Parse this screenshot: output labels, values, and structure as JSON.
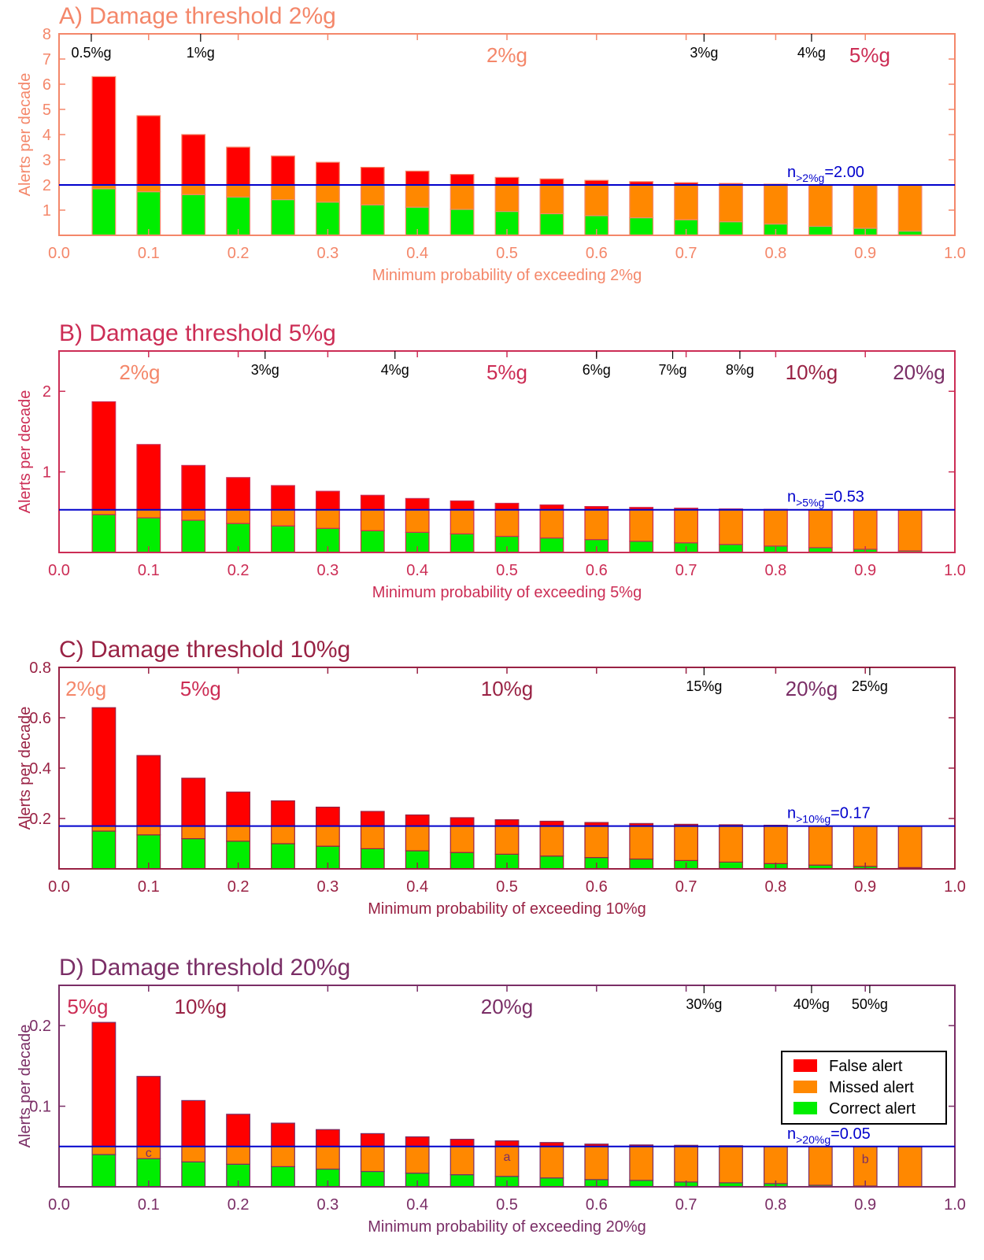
{
  "legend": {
    "items": [
      {
        "label": "False alert",
        "color": "#ff0000"
      },
      {
        "label": "Missed alert",
        "color": "#ff8800"
      },
      {
        "label": "Correct alert",
        "color": "#00ee00"
      }
    ],
    "placement": "right, inside panel D"
  },
  "colors": {
    "threshold_line": "#0000cc",
    "frame_black": "#000000"
  },
  "chart_data": [
    {
      "type": "bar",
      "stacked": true,
      "title": "A) Damage threshold 2%g",
      "color": "#f4876a",
      "xlabel": "Minimum probability of exceeding 2%g",
      "ylabel": "Alerts per decade",
      "xlim": [
        0.0,
        1.0
      ],
      "ylim": [
        0,
        8
      ],
      "xticks": [
        "0.0",
        "0.1",
        "0.2",
        "0.3",
        "0.4",
        "0.5",
        "0.6",
        "0.7",
        "0.8",
        "0.9",
        "1.0"
      ],
      "yticks": [
        {
          "v": 1,
          "label": "1"
        },
        {
          "v": 2,
          "label": "2"
        },
        {
          "v": 3,
          "label": "3"
        },
        {
          "v": 4,
          "label": "4"
        },
        {
          "v": 5,
          "label": "5"
        },
        {
          "v": 6,
          "label": "6"
        },
        {
          "v": 7,
          "label": "7"
        },
        {
          "v": 8,
          "label": "8"
        }
      ],
      "x": [
        0.05,
        0.1,
        0.15,
        0.2,
        0.25,
        0.3,
        0.35,
        0.4,
        0.45,
        0.5,
        0.55,
        0.6,
        0.65,
        0.7,
        0.75,
        0.8,
        0.85,
        0.9,
        0.95
      ],
      "n_value": 2.0,
      "n_sub": ">2%g",
      "n_val_text": "=2.00",
      "series": [
        {
          "name": "Correct alert",
          "values": [
            1.85,
            1.73,
            1.62,
            1.52,
            1.42,
            1.32,
            1.21,
            1.12,
            1.03,
            0.95,
            0.86,
            0.78,
            0.7,
            0.62,
            0.54,
            0.45,
            0.36,
            0.28,
            0.17
          ]
        },
        {
          "name": "Missed alert",
          "values": [
            0.15,
            0.27,
            0.38,
            0.48,
            0.58,
            0.68,
            0.79,
            0.88,
            0.97,
            1.05,
            1.14,
            1.22,
            1.3,
            1.38,
            1.46,
            1.55,
            1.64,
            1.72,
            1.83
          ]
        },
        {
          "name": "False alert",
          "values": [
            4.3,
            2.75,
            2.0,
            1.5,
            1.15,
            0.9,
            0.7,
            0.55,
            0.42,
            0.3,
            0.24,
            0.18,
            0.13,
            0.09,
            0.06,
            0.03,
            0.0,
            0.0,
            0.0
          ]
        }
      ],
      "top_labels": [
        {
          "text": "0.5%g",
          "x": 0.036,
          "color": "#000000",
          "large": false
        },
        {
          "text": "1%g",
          "x": 0.158,
          "color": "#000000",
          "large": false
        },
        {
          "text": "2%g",
          "x": 0.5,
          "color": "#f4876a",
          "large": true
        },
        {
          "text": "3%g",
          "x": 0.72,
          "color": "#000000",
          "large": false
        },
        {
          "text": "4%g",
          "x": 0.84,
          "color": "#000000",
          "large": false
        },
        {
          "text": "5%g",
          "x": 0.905,
          "color": "#cc2d55",
          "large": true
        }
      ],
      "inside_letters": []
    },
    {
      "type": "bar",
      "stacked": true,
      "title": "B) Damage threshold 5%g",
      "color": "#cc2d55",
      "xlabel": "Minimum probability of exceeding 5%g",
      "ylabel": "Alerts per decade",
      "xlim": [
        0.0,
        1.0
      ],
      "ylim": [
        0,
        2.5
      ],
      "xticks": [
        "0.0",
        "0.1",
        "0.2",
        "0.3",
        "0.4",
        "0.5",
        "0.6",
        "0.7",
        "0.8",
        "0.9",
        "1.0"
      ],
      "yticks": [
        {
          "v": 1,
          "label": "1"
        },
        {
          "v": 2,
          "label": "2"
        }
      ],
      "x": [
        0.05,
        0.1,
        0.15,
        0.2,
        0.25,
        0.3,
        0.35,
        0.4,
        0.45,
        0.5,
        0.55,
        0.6,
        0.65,
        0.7,
        0.75,
        0.8,
        0.85,
        0.9,
        0.95
      ],
      "n_value": 0.53,
      "n_sub": ">5%g",
      "n_val_text": "=0.53",
      "series": [
        {
          "name": "Correct alert",
          "values": [
            0.47,
            0.43,
            0.4,
            0.36,
            0.33,
            0.3,
            0.27,
            0.25,
            0.23,
            0.2,
            0.18,
            0.16,
            0.14,
            0.12,
            0.1,
            0.08,
            0.06,
            0.04,
            0.02
          ]
        },
        {
          "name": "Missed alert",
          "values": [
            0.06,
            0.1,
            0.13,
            0.17,
            0.2,
            0.23,
            0.26,
            0.28,
            0.3,
            0.33,
            0.35,
            0.37,
            0.39,
            0.41,
            0.43,
            0.45,
            0.47,
            0.49,
            0.51
          ]
        },
        {
          "name": "False alert",
          "values": [
            1.34,
            0.81,
            0.55,
            0.4,
            0.3,
            0.23,
            0.18,
            0.14,
            0.11,
            0.08,
            0.06,
            0.04,
            0.03,
            0.02,
            0.01,
            0.005,
            0.0,
            0.0,
            0.0
          ]
        }
      ],
      "top_labels": [
        {
          "text": "2%g",
          "x": 0.09,
          "color": "#f4876a",
          "large": true
        },
        {
          "text": "3%g",
          "x": 0.23,
          "color": "#000000",
          "large": false
        },
        {
          "text": "4%g",
          "x": 0.375,
          "color": "#000000",
          "large": false
        },
        {
          "text": "5%g",
          "x": 0.5,
          "color": "#cc2d55",
          "large": true
        },
        {
          "text": "6%g",
          "x": 0.6,
          "color": "#000000",
          "large": false
        },
        {
          "text": "7%g",
          "x": 0.685,
          "color": "#000000",
          "large": false
        },
        {
          "text": "8%g",
          "x": 0.76,
          "color": "#000000",
          "large": false
        },
        {
          "text": "10%g",
          "x": 0.84,
          "color": "#992244",
          "large": true
        },
        {
          "text": "20%g",
          "x": 0.96,
          "color": "#7a2e66",
          "large": true
        }
      ],
      "inside_letters": []
    },
    {
      "type": "bar",
      "stacked": true,
      "title": "C) Damage threshold 10%g",
      "color": "#992244",
      "xlabel": "Minimum probability of exceeding 10%g",
      "ylabel": "Alerts per decade",
      "xlim": [
        0.0,
        1.0
      ],
      "ylim": [
        0,
        0.8
      ],
      "xticks": [
        "0.0",
        "0.1",
        "0.2",
        "0.3",
        "0.4",
        "0.5",
        "0.6",
        "0.7",
        "0.8",
        "0.9",
        "1.0"
      ],
      "yticks": [
        {
          "v": 0.2,
          "label": "0.2"
        },
        {
          "v": 0.4,
          "label": "0.4"
        },
        {
          "v": 0.6,
          "label": "0.6"
        },
        {
          "v": 0.8,
          "label": "0.8"
        }
      ],
      "x": [
        0.05,
        0.1,
        0.15,
        0.2,
        0.25,
        0.3,
        0.35,
        0.4,
        0.45,
        0.5,
        0.55,
        0.6,
        0.65,
        0.7,
        0.75,
        0.8,
        0.85,
        0.9,
        0.95
      ],
      "n_value": 0.17,
      "n_sub": ">10%g",
      "n_val_text": "=0.17",
      "series": [
        {
          "name": "Correct alert",
          "values": [
            0.15,
            0.135,
            0.12,
            0.11,
            0.1,
            0.09,
            0.08,
            0.072,
            0.065,
            0.058,
            0.051,
            0.045,
            0.039,
            0.033,
            0.027,
            0.021,
            0.015,
            0.01,
            0.005
          ]
        },
        {
          "name": "Missed alert",
          "values": [
            0.02,
            0.035,
            0.05,
            0.06,
            0.07,
            0.08,
            0.09,
            0.098,
            0.105,
            0.112,
            0.119,
            0.125,
            0.131,
            0.137,
            0.143,
            0.149,
            0.155,
            0.16,
            0.165
          ]
        },
        {
          "name": "False alert",
          "values": [
            0.47,
            0.28,
            0.19,
            0.135,
            0.1,
            0.075,
            0.058,
            0.044,
            0.033,
            0.025,
            0.019,
            0.014,
            0.01,
            0.007,
            0.005,
            0.003,
            0.0,
            0.0,
            0.0
          ]
        }
      ],
      "top_labels": [
        {
          "text": "2%g",
          "x": 0.03,
          "color": "#f4876a",
          "large": true
        },
        {
          "text": "5%g",
          "x": 0.158,
          "color": "#cc2d55",
          "large": true
        },
        {
          "text": "10%g",
          "x": 0.5,
          "color": "#992244",
          "large": true
        },
        {
          "text": "15%g",
          "x": 0.72,
          "color": "#000000",
          "large": false
        },
        {
          "text": "20%g",
          "x": 0.84,
          "color": "#7a2e66",
          "large": true
        },
        {
          "text": "25%g",
          "x": 0.905,
          "color": "#000000",
          "large": false
        }
      ],
      "inside_letters": []
    },
    {
      "type": "bar",
      "stacked": true,
      "title": "D) Damage threshold 20%g",
      "color": "#7a2e66",
      "xlabel": "Minimum probability of exceeding 20%g",
      "ylabel": "Alerts per decade",
      "xlim": [
        0.0,
        1.0
      ],
      "ylim": [
        0,
        0.25
      ],
      "xticks": [
        "0.0",
        "0.1",
        "0.2",
        "0.3",
        "0.4",
        "0.5",
        "0.6",
        "0.7",
        "0.8",
        "0.9",
        "1.0"
      ],
      "yticks": [
        {
          "v": 0.1,
          "label": "0.1"
        },
        {
          "v": 0.2,
          "label": "0.2"
        }
      ],
      "x": [
        0.05,
        0.1,
        0.15,
        0.2,
        0.25,
        0.3,
        0.35,
        0.4,
        0.45,
        0.5,
        0.55,
        0.6,
        0.65,
        0.7,
        0.75,
        0.8,
        0.85,
        0.9,
        0.95
      ],
      "n_value": 0.05,
      "n_sub": ">20%g",
      "n_val_text": "=0.05",
      "series": [
        {
          "name": "Correct alert",
          "values": [
            0.04,
            0.035,
            0.031,
            0.028,
            0.025,
            0.022,
            0.019,
            0.017,
            0.015,
            0.013,
            0.011,
            0.009,
            0.008,
            0.006,
            0.005,
            0.004,
            0.002,
            0.001,
            0.0
          ]
        },
        {
          "name": "Missed alert",
          "values": [
            0.01,
            0.015,
            0.019,
            0.022,
            0.025,
            0.028,
            0.031,
            0.033,
            0.035,
            0.037,
            0.039,
            0.041,
            0.042,
            0.044,
            0.045,
            0.046,
            0.048,
            0.049,
            0.05
          ]
        },
        {
          "name": "False alert",
          "values": [
            0.154,
            0.087,
            0.057,
            0.04,
            0.029,
            0.021,
            0.016,
            0.012,
            0.009,
            0.007,
            0.005,
            0.003,
            0.002,
            0.0015,
            0.001,
            0.0,
            0.0,
            0.0,
            0.0
          ]
        }
      ],
      "top_labels": [
        {
          "text": "5%g",
          "x": 0.032,
          "color": "#cc2d55",
          "large": true
        },
        {
          "text": "10%g",
          "x": 0.158,
          "color": "#992244",
          "large": true
        },
        {
          "text": "20%g",
          "x": 0.5,
          "color": "#7a2e66",
          "large": true
        },
        {
          "text": "30%g",
          "x": 0.72,
          "color": "#000000",
          "large": false
        },
        {
          "text": "40%g",
          "x": 0.84,
          "color": "#000000",
          "large": false
        },
        {
          "text": "50%g",
          "x": 0.905,
          "color": "#000000",
          "large": false
        }
      ],
      "inside_letters": [
        {
          "text": "c",
          "x": 0.1,
          "y": 0.043
        },
        {
          "text": "a",
          "x": 0.5,
          "y": 0.038
        },
        {
          "text": "b",
          "x": 0.9,
          "y": 0.035
        }
      ]
    }
  ]
}
